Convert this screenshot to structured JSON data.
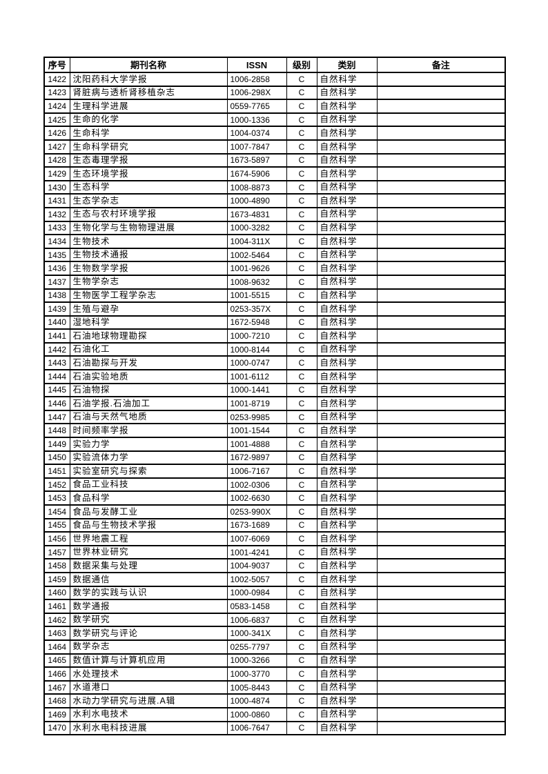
{
  "table": {
    "headers": [
      "序号",
      "期刊名称",
      "ISSN",
      "级别",
      "类别",
      "备注"
    ],
    "rows": [
      {
        "no": "1422",
        "name": "沈阳药科大学学报",
        "issn": "1006-2858",
        "level": "C",
        "category": "自然科学",
        "note": ""
      },
      {
        "no": "1423",
        "name": "肾脏病与透析肾移植杂志",
        "issn": "1006-298X",
        "level": "C",
        "category": "自然科学",
        "note": ""
      },
      {
        "no": "1424",
        "name": "生理科学进展",
        "issn": "0559-7765",
        "level": "C",
        "category": "自然科学",
        "note": ""
      },
      {
        "no": "1425",
        "name": "生命的化学",
        "issn": "1000-1336",
        "level": "C",
        "category": "自然科学",
        "note": ""
      },
      {
        "no": "1426",
        "name": "生命科学",
        "issn": "1004-0374",
        "level": "C",
        "category": "自然科学",
        "note": ""
      },
      {
        "no": "1427",
        "name": "生命科学研究",
        "issn": "1007-7847",
        "level": "C",
        "category": "自然科学",
        "note": ""
      },
      {
        "no": "1428",
        "name": "生态毒理学报",
        "issn": "1673-5897",
        "level": "C",
        "category": "自然科学",
        "note": ""
      },
      {
        "no": "1429",
        "name": "生态环境学报",
        "issn": "1674-5906",
        "level": "C",
        "category": "自然科学",
        "note": ""
      },
      {
        "no": "1430",
        "name": "生态科学",
        "issn": "1008-8873",
        "level": "C",
        "category": "自然科学",
        "note": ""
      },
      {
        "no": "1431",
        "name": "生态学杂志",
        "issn": "1000-4890",
        "level": "C",
        "category": "自然科学",
        "note": ""
      },
      {
        "no": "1432",
        "name": "生态与农村环境学报",
        "issn": "1673-4831",
        "level": "C",
        "category": "自然科学",
        "note": ""
      },
      {
        "no": "1433",
        "name": "生物化学与生物物理进展",
        "issn": "1000-3282",
        "level": "C",
        "category": "自然科学",
        "note": ""
      },
      {
        "no": "1434",
        "name": "生物技术",
        "issn": "1004-311X",
        "level": "C",
        "category": "自然科学",
        "note": ""
      },
      {
        "no": "1435",
        "name": "生物技术通报",
        "issn": "1002-5464",
        "level": "C",
        "category": "自然科学",
        "note": ""
      },
      {
        "no": "1436",
        "name": "生物数学学报",
        "issn": "1001-9626",
        "level": "C",
        "category": "自然科学",
        "note": ""
      },
      {
        "no": "1437",
        "name": "生物学杂志",
        "issn": "1008-9632",
        "level": "C",
        "category": "自然科学",
        "note": ""
      },
      {
        "no": "1438",
        "name": "生物医学工程学杂志",
        "issn": "1001-5515",
        "level": "C",
        "category": "自然科学",
        "note": ""
      },
      {
        "no": "1439",
        "name": "生殖与避孕",
        "issn": "0253-357X",
        "level": "C",
        "category": "自然科学",
        "note": ""
      },
      {
        "no": "1440",
        "name": "湿地科学",
        "issn": "1672-5948",
        "level": "C",
        "category": "自然科学",
        "note": ""
      },
      {
        "no": "1441",
        "name": "石油地球物理勘探",
        "issn": "1000-7210",
        "level": "C",
        "category": "自然科学",
        "note": ""
      },
      {
        "no": "1442",
        "name": "石油化工",
        "issn": "1000-8144",
        "level": "C",
        "category": "自然科学",
        "note": ""
      },
      {
        "no": "1443",
        "name": "石油勘探与开发",
        "issn": "1000-0747",
        "level": "C",
        "category": "自然科学",
        "note": ""
      },
      {
        "no": "1444",
        "name": "石油实验地质",
        "issn": "1001-6112",
        "level": "C",
        "category": "自然科学",
        "note": ""
      },
      {
        "no": "1445",
        "name": "石油物探",
        "issn": "1000-1441",
        "level": "C",
        "category": "自然科学",
        "note": ""
      },
      {
        "no": "1446",
        "name": "石油学报.石油加工",
        "issn": "1001-8719",
        "level": "C",
        "category": "自然科学",
        "note": ""
      },
      {
        "no": "1447",
        "name": "石油与天然气地质",
        "issn": "0253-9985",
        "level": "C",
        "category": "自然科学",
        "note": ""
      },
      {
        "no": "1448",
        "name": "时间频率学报",
        "issn": "1001-1544",
        "level": "C",
        "category": "自然科学",
        "note": ""
      },
      {
        "no": "1449",
        "name": "实验力学",
        "issn": "1001-4888",
        "level": "C",
        "category": "自然科学",
        "note": ""
      },
      {
        "no": "1450",
        "name": "实验流体力学",
        "issn": "1672-9897",
        "level": "C",
        "category": "自然科学",
        "note": ""
      },
      {
        "no": "1451",
        "name": "实验室研究与探索",
        "issn": "1006-7167",
        "level": "C",
        "category": "自然科学",
        "note": ""
      },
      {
        "no": "1452",
        "name": "食品工业科技",
        "issn": "1002-0306",
        "level": "C",
        "category": "自然科学",
        "note": ""
      },
      {
        "no": "1453",
        "name": "食品科学",
        "issn": "1002-6630",
        "level": "C",
        "category": "自然科学",
        "note": ""
      },
      {
        "no": "1454",
        "name": "食品与发酵工业",
        "issn": "0253-990X",
        "level": "C",
        "category": "自然科学",
        "note": ""
      },
      {
        "no": "1455",
        "name": "食品与生物技术学报",
        "issn": "1673-1689",
        "level": "C",
        "category": "自然科学",
        "note": ""
      },
      {
        "no": "1456",
        "name": "世界地震工程",
        "issn": "1007-6069",
        "level": "C",
        "category": "自然科学",
        "note": ""
      },
      {
        "no": "1457",
        "name": "世界林业研究",
        "issn": "1001-4241",
        "level": "C",
        "category": "自然科学",
        "note": ""
      },
      {
        "no": "1458",
        "name": "数据采集与处理",
        "issn": "1004-9037",
        "level": "C",
        "category": "自然科学",
        "note": ""
      },
      {
        "no": "1459",
        "name": "数据通信",
        "issn": "1002-5057",
        "level": "C",
        "category": "自然科学",
        "note": ""
      },
      {
        "no": "1460",
        "name": "数学的实践与认识",
        "issn": "1000-0984",
        "level": "C",
        "category": "自然科学",
        "note": ""
      },
      {
        "no": "1461",
        "name": "数学通报",
        "issn": "0583-1458",
        "level": "C",
        "category": "自然科学",
        "note": ""
      },
      {
        "no": "1462",
        "name": "数学研究",
        "issn": "1006-6837",
        "level": "C",
        "category": "自然科学",
        "note": ""
      },
      {
        "no": "1463",
        "name": "数学研究与评论",
        "issn": "1000-341X",
        "level": "C",
        "category": "自然科学",
        "note": ""
      },
      {
        "no": "1464",
        "name": "数学杂志",
        "issn": "0255-7797",
        "level": "C",
        "category": "自然科学",
        "note": ""
      },
      {
        "no": "1465",
        "name": "数值计算与计算机应用",
        "issn": "1000-3266",
        "level": "C",
        "category": "自然科学",
        "note": ""
      },
      {
        "no": "1466",
        "name": "水处理技术",
        "issn": "1000-3770",
        "level": "C",
        "category": "自然科学",
        "note": ""
      },
      {
        "no": "1467",
        "name": "水道港口",
        "issn": "1005-8443",
        "level": "C",
        "category": "自然科学",
        "note": ""
      },
      {
        "no": "1468",
        "name": "水动力学研究与进展.A辑",
        "issn": "1000-4874",
        "level": "C",
        "category": "自然科学",
        "note": ""
      },
      {
        "no": "1469",
        "name": "水利水电技术",
        "issn": "1000-0860",
        "level": "C",
        "category": "自然科学",
        "note": ""
      },
      {
        "no": "1470",
        "name": "水利水电科技进展",
        "issn": "1006-7647",
        "level": "C",
        "category": "自然科学",
        "note": ""
      }
    ]
  }
}
